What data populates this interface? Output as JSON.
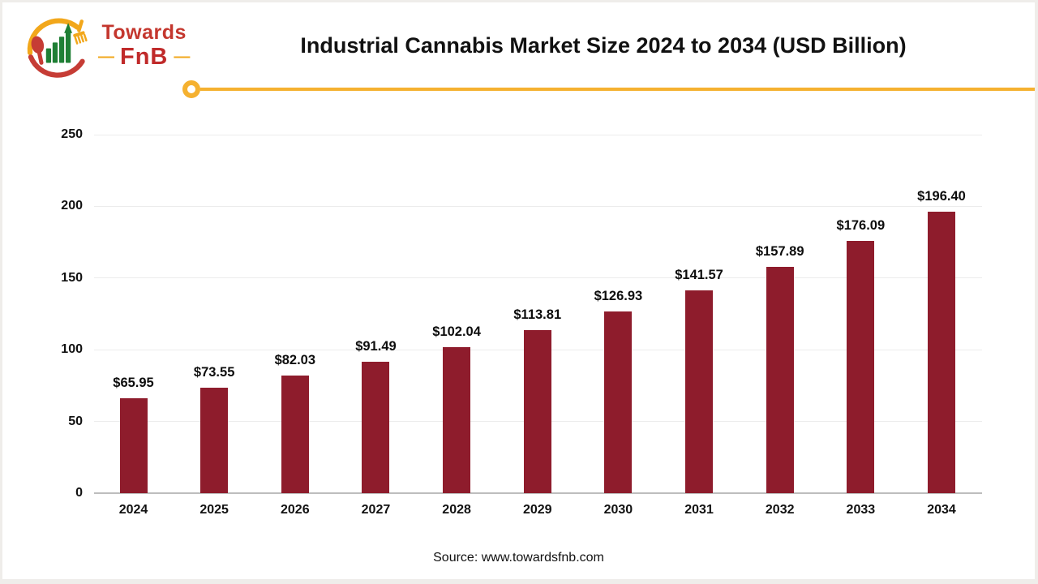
{
  "logo": {
    "name_top": "Towards",
    "name_bottom": "FnB",
    "dash": "—"
  },
  "footer": {
    "source": "Source: www.towardsfnb.com"
  },
  "colors": {
    "bar": "#8e1c2c",
    "accent_line": "#f5b130",
    "grid": "#ececec",
    "axis": "#bdbdbd",
    "logo_red": "#c63c35",
    "logo_green": "#1f7f35",
    "logo_yellow": "#f2a71b"
  },
  "chart_data": {
    "type": "bar",
    "title": "Industrial Cannabis Market Size 2024 to 2034 (USD Billion)",
    "xlabel": "",
    "ylabel": "",
    "categories": [
      "2024",
      "2025",
      "2026",
      "2027",
      "2028",
      "2029",
      "2030",
      "2031",
      "2032",
      "2033",
      "2034"
    ],
    "values": [
      65.95,
      73.55,
      82.03,
      91.49,
      102.04,
      113.81,
      126.93,
      141.57,
      157.89,
      176.09,
      196.4
    ],
    "value_labels": [
      "$65.95",
      "$73.55",
      "$82.03",
      "$91.49",
      "$102.04",
      "$113.81",
      "$126.93",
      "$141.57",
      "$157.89",
      "$176.09",
      "$196.40"
    ],
    "ylim": [
      0,
      250
    ],
    "yticks": [
      0,
      50,
      100,
      150,
      200,
      250
    ],
    "ytick_labels": [
      "0",
      "50",
      "100",
      "150",
      "200",
      "250"
    ],
    "grid": true,
    "legend_position": "none",
    "bar_color": "#8e1c2c"
  }
}
